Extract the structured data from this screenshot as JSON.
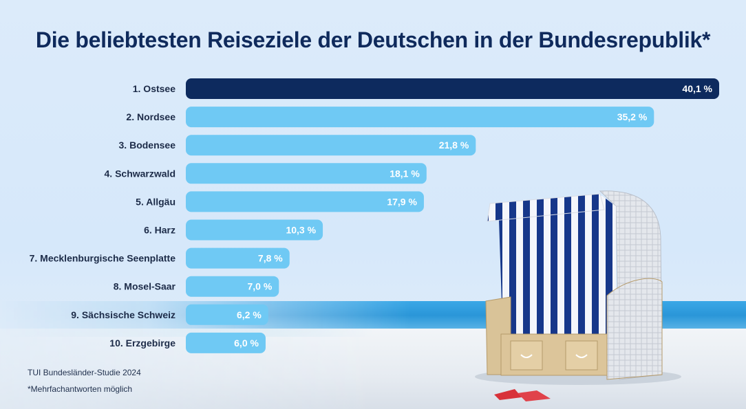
{
  "title": "Die beliebtesten Reiseziele der Deutschen in der Bundesrepublik*",
  "source": "TUI Bundesländer-Studie 2024",
  "note": "*Mehrfachantworten möglich",
  "colors": {
    "highlight_bar": "#0d2a5e",
    "bar": "#6fc9f4",
    "text": "#1c2b48"
  },
  "chart_data": {
    "type": "bar",
    "orientation": "horizontal",
    "title": "Die beliebtesten Reiseziele der Deutschen in der Bundesrepublik*",
    "categories": [
      "1. Ostsee",
      "2. Nordsee",
      "3. Bodensee",
      "4. Schwarzwald",
      "5. Allgäu",
      "6. Harz",
      "7. Mecklenburgische Seenplatte",
      "8. Mosel-Saar",
      "9. Sächsische Schweiz",
      "10. Erzgebirge"
    ],
    "values": [
      40.1,
      35.2,
      21.8,
      18.1,
      17.9,
      10.3,
      7.8,
      7.0,
      6.2,
      6.0
    ],
    "value_labels": [
      "40,1 %",
      "35,2 %",
      "21,8 %",
      "18,1 %",
      "17,9 %",
      "10,3 %",
      "7,8 %",
      "7,0 %",
      "6,2 %",
      "6,0 %"
    ],
    "highlighted": [
      true,
      false,
      false,
      false,
      false,
      false,
      false,
      false,
      false,
      false
    ],
    "xlabel": "",
    "ylabel": "",
    "grid": false,
    "legend": "none"
  }
}
